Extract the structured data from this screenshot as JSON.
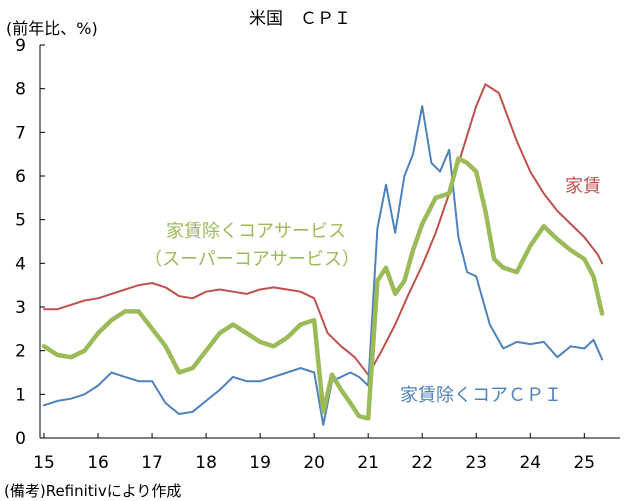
{
  "chart_data": {
    "type": "line",
    "title": "米国　ＣＰＩ",
    "ylabel": "(前年比、%)",
    "xlabel": "",
    "ylim": [
      0,
      9
    ],
    "yticks": [
      "0",
      "1",
      "2",
      "3",
      "4",
      "5",
      "6",
      "7",
      "8",
      "9"
    ],
    "xlim": [
      2015.0,
      2025.42
    ],
    "xticks": [
      {
        "value": 2015.0,
        "label": "15"
      },
      {
        "value": 2016.0,
        "label": "16"
      },
      {
        "value": 2017.0,
        "label": "17"
      },
      {
        "value": 2018.0,
        "label": "18"
      },
      {
        "value": 2019.0,
        "label": "19"
      },
      {
        "value": 2020.0,
        "label": "20"
      },
      {
        "value": 2021.0,
        "label": "21"
      },
      {
        "value": 2022.0,
        "label": "22"
      },
      {
        "value": 2023.0,
        "label": "23"
      },
      {
        "value": 2024.0,
        "label": "24"
      },
      {
        "value": 2025.0,
        "label": "25"
      }
    ],
    "grid": false,
    "source": "(備考)Refinitivにより作成",
    "series": [
      {
        "name": "家賃",
        "label_lines": [
          "家賃"
        ],
        "color": "#c0504d",
        "width": 2,
        "x": [
          2015.0,
          2015.25,
          2015.5,
          2015.75,
          2016.0,
          2016.25,
          2016.5,
          2016.75,
          2017.0,
          2017.25,
          2017.5,
          2017.75,
          2018.0,
          2018.25,
          2018.5,
          2018.75,
          2019.0,
          2019.25,
          2019.5,
          2019.75,
          2020.0,
          2020.25,
          2020.5,
          2020.75,
          2021.0,
          2021.25,
          2021.5,
          2021.75,
          2022.0,
          2022.25,
          2022.5,
          2022.75,
          2023.0,
          2023.17,
          2023.42,
          2023.75,
          2024.0,
          2024.25,
          2024.5,
          2024.75,
          2025.0,
          2025.25,
          2025.33
        ],
        "y": [
          2.95,
          2.95,
          3.05,
          3.15,
          3.2,
          3.3,
          3.4,
          3.5,
          3.55,
          3.45,
          3.25,
          3.2,
          3.35,
          3.4,
          3.35,
          3.3,
          3.4,
          3.45,
          3.4,
          3.35,
          3.2,
          2.4,
          2.1,
          1.85,
          1.45,
          2.0,
          2.6,
          3.3,
          3.95,
          4.7,
          5.6,
          6.6,
          7.6,
          8.1,
          7.9,
          6.8,
          6.1,
          5.6,
          5.2,
          4.9,
          4.6,
          4.2,
          4.0
        ]
      },
      {
        "name": "家賃除くコアサービス（スーパーコアサービス）",
        "label_lines": [
          "家賃除くコアサービス",
          "（スーパーコアサービス）"
        ],
        "color": "#9bbb59",
        "width": 4.5,
        "x": [
          2015.0,
          2015.25,
          2015.5,
          2015.75,
          2016.0,
          2016.25,
          2016.5,
          2016.75,
          2017.0,
          2017.25,
          2017.5,
          2017.75,
          2018.0,
          2018.25,
          2018.5,
          2018.75,
          2019.0,
          2019.25,
          2019.5,
          2019.75,
          2020.0,
          2020.17,
          2020.33,
          2020.5,
          2020.67,
          2020.83,
          2021.0,
          2021.17,
          2021.33,
          2021.5,
          2021.67,
          2021.83,
          2022.0,
          2022.25,
          2022.5,
          2022.67,
          2022.83,
          2023.0,
          2023.17,
          2023.33,
          2023.5,
          2023.75,
          2024.0,
          2024.25,
          2024.5,
          2024.75,
          2025.0,
          2025.17,
          2025.33
        ],
        "y": [
          2.1,
          1.9,
          1.85,
          2.0,
          2.4,
          2.7,
          2.9,
          2.9,
          2.5,
          2.1,
          1.5,
          1.6,
          2.0,
          2.4,
          2.6,
          2.4,
          2.2,
          2.1,
          2.3,
          2.6,
          2.7,
          0.6,
          1.45,
          1.1,
          0.8,
          0.5,
          0.45,
          3.6,
          3.9,
          3.3,
          3.6,
          4.3,
          4.9,
          5.5,
          5.6,
          6.4,
          6.3,
          6.1,
          5.2,
          4.1,
          3.9,
          3.8,
          4.4,
          4.85,
          4.55,
          4.3,
          4.1,
          3.7,
          2.85
        ]
      },
      {
        "name": "家賃除くコアＣＰＩ",
        "label_lines": [
          "家賃除くコアＣＰＩ"
        ],
        "color": "#4f81bd",
        "width": 2,
        "x": [
          2015.0,
          2015.25,
          2015.5,
          2015.75,
          2016.0,
          2016.25,
          2016.5,
          2016.75,
          2017.0,
          2017.25,
          2017.5,
          2017.75,
          2018.0,
          2018.25,
          2018.5,
          2018.75,
          2019.0,
          2019.25,
          2019.5,
          2019.75,
          2020.0,
          2020.17,
          2020.33,
          2020.5,
          2020.67,
          2020.83,
          2021.0,
          2021.17,
          2021.33,
          2021.5,
          2021.67,
          2021.83,
          2022.0,
          2022.17,
          2022.33,
          2022.5,
          2022.67,
          2022.83,
          2023.0,
          2023.25,
          2023.5,
          2023.75,
          2024.0,
          2024.25,
          2024.5,
          2024.75,
          2025.0,
          2025.17,
          2025.33
        ],
        "y": [
          0.75,
          0.85,
          0.9,
          1.0,
          1.2,
          1.5,
          1.4,
          1.3,
          1.3,
          0.8,
          0.55,
          0.6,
          0.85,
          1.1,
          1.4,
          1.3,
          1.3,
          1.4,
          1.5,
          1.6,
          1.5,
          0.3,
          1.3,
          1.4,
          1.5,
          1.4,
          1.2,
          4.8,
          5.8,
          4.7,
          6.0,
          6.5,
          7.6,
          6.3,
          6.1,
          6.6,
          4.6,
          3.8,
          3.7,
          2.6,
          2.05,
          2.2,
          2.15,
          2.2,
          1.85,
          2.1,
          2.05,
          2.25,
          1.8
        ]
      }
    ]
  }
}
